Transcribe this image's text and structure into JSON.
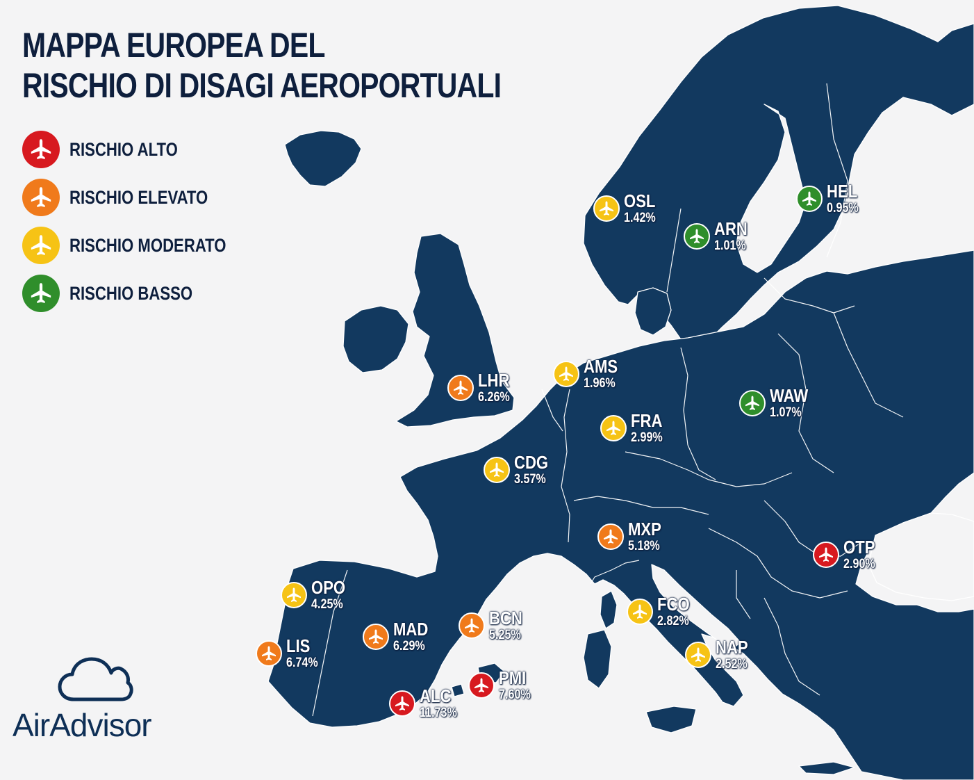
{
  "title": {
    "line1": "MAPPA EUROPEA DEL",
    "line2": "RISCHIO DI DISAGI AEROPORTUALI"
  },
  "colors": {
    "land": "#12395f",
    "background": "#f4f4f5",
    "border": "#ffffff",
    "alto": "#d7191f",
    "elevato": "#f07a1b",
    "moderato": "#f6c315",
    "basso": "#2f8e2b"
  },
  "legend": [
    {
      "level": "alto",
      "label": "RISCHIO ALTO",
      "icon": "airplane-icon"
    },
    {
      "level": "elevato",
      "label": "RISCHIO ELEVATO",
      "icon": "airplane-icon"
    },
    {
      "level": "moderato",
      "label": "RISCHIO MODERATO",
      "icon": "airplane-icon"
    },
    {
      "level": "basso",
      "label": "RISCHIO BASSO",
      "icon": "airplane-icon"
    }
  ],
  "airports": [
    {
      "code": "OSL",
      "value": "1.42%",
      "risk": "moderato"
    },
    {
      "code": "ARN",
      "value": "1.01%",
      "risk": "basso"
    },
    {
      "code": "HEL",
      "value": "0.95%",
      "risk": "basso"
    },
    {
      "code": "AMS",
      "value": "1.96%",
      "risk": "moderato"
    },
    {
      "code": "LHR",
      "value": "6.26%",
      "risk": "elevato"
    },
    {
      "code": "WAW",
      "value": "1.07%",
      "risk": "basso"
    },
    {
      "code": "FRA",
      "value": "2.99%",
      "risk": "moderato"
    },
    {
      "code": "CDG",
      "value": "3.57%",
      "risk": "moderato"
    },
    {
      "code": "MXP",
      "value": "5.18%",
      "risk": "elevato"
    },
    {
      "code": "OTP",
      "value": "2.90%",
      "risk": "alto"
    },
    {
      "code": "OPO",
      "value": "4.25%",
      "risk": "moderato"
    },
    {
      "code": "FCO",
      "value": "2.82%",
      "risk": "moderato"
    },
    {
      "code": "BCN",
      "value": "5.25%",
      "risk": "elevato"
    },
    {
      "code": "MAD",
      "value": "6.29%",
      "risk": "elevato"
    },
    {
      "code": "LIS",
      "value": "6.74%",
      "risk": "elevato"
    },
    {
      "code": "NAP",
      "value": "2.52%",
      "risk": "moderato"
    },
    {
      "code": "PMI",
      "value": "7.60%",
      "risk": "alto"
    },
    {
      "code": "ALC",
      "value": "11.73%",
      "risk": "alto"
    }
  ],
  "brand": {
    "name": "AirAdvisor",
    "icon": "cloud-icon"
  }
}
